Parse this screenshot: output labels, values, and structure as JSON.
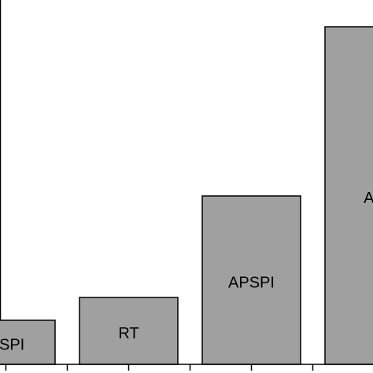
{
  "chart_data": {
    "type": "bar",
    "categories": [
      "SPI",
      "RT",
      "APSPI",
      "AE"
    ],
    "values": [
      56,
      85,
      214,
      429
    ],
    "color": "#a0a0a0",
    "ylim": [
      0,
      463
    ]
  }
}
